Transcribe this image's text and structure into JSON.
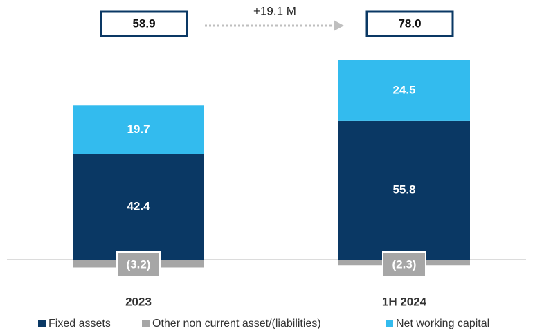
{
  "chart_data": {
    "type": "stacked_bar",
    "categories": [
      "2023",
      "1H 2024"
    ],
    "series": [
      {
        "name": "Fixed assets",
        "color": "#0a3864",
        "values": [
          42.4,
          55.8
        ]
      },
      {
        "name": "Other non current asset/(liabilities)",
        "color": "#a6a6a6",
        "values": [
          -3.2,
          -2.3
        ],
        "value_labels": [
          "(3.2)",
          "(2.3)"
        ]
      },
      {
        "name": "Net working capital",
        "color": "#33bbee",
        "values": [
          19.7,
          24.5
        ]
      }
    ],
    "totals": {
      "values": [
        58.9,
        78
      ],
      "value_labels": [
        "58.9",
        "78.0"
      ]
    },
    "annotation": "+19.1 M",
    "legend": "bottom"
  }
}
